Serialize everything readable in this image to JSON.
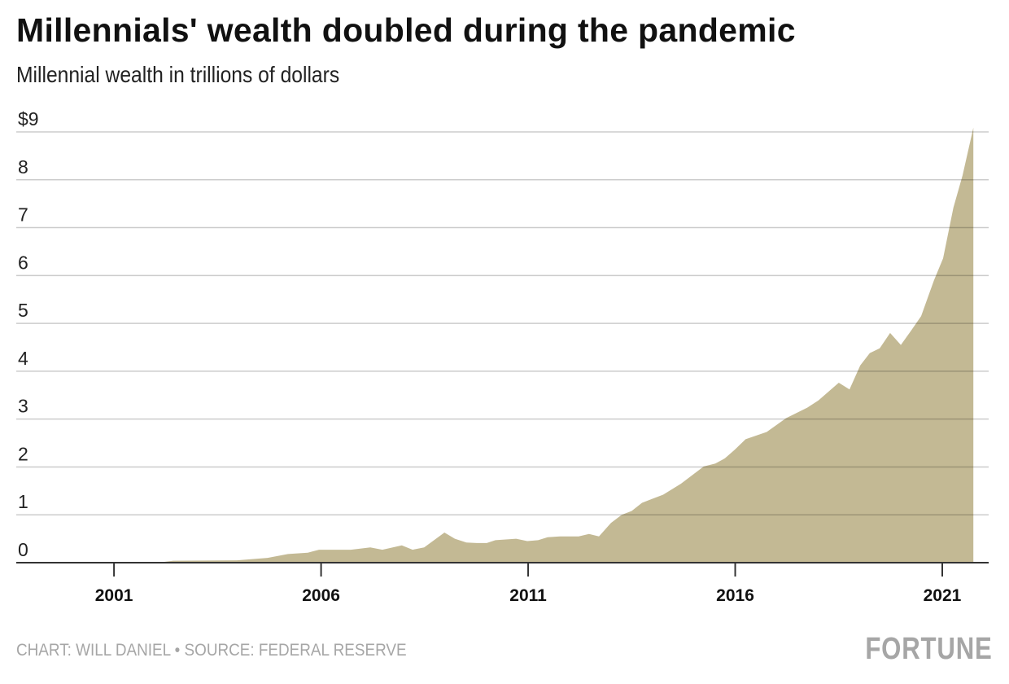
{
  "chart_data": {
    "type": "area",
    "title": "Millennials' wealth doubled during the pandemic",
    "subtitle": "Millennial wealth in trillions of dollars",
    "xlabel": "",
    "ylabel": "Millennial wealth (trillions of dollars)",
    "xlim": [
      1998.64,
      2022.12
    ],
    "ylim": [
      0,
      9
    ],
    "grid": true,
    "legend": "none",
    "fill_color": "#c3b994",
    "x_ticks": [
      2001,
      2006,
      2011,
      2016,
      2021
    ],
    "x_tick_labels": [
      "2001",
      "2006",
      "2011",
      "2016",
      "2021"
    ],
    "y_ticks": [
      0,
      1,
      2,
      3,
      4,
      5,
      6,
      7,
      8,
      9
    ],
    "y_tick_labels": [
      "0",
      "1",
      "2",
      "3",
      "4",
      "5",
      "6",
      "7",
      "8",
      "$9"
    ],
    "points": [
      [
        1998.64,
        0
      ],
      [
        2002.06,
        0
      ],
      [
        2002.43,
        0.04
      ],
      [
        2003.97,
        0.05
      ],
      [
        2004.71,
        0.1
      ],
      [
        2005.2,
        0.18
      ],
      [
        2005.68,
        0.21
      ],
      [
        2005.95,
        0.27
      ],
      [
        2006.72,
        0.27
      ],
      [
        2007.19,
        0.32
      ],
      [
        2007.48,
        0.27
      ],
      [
        2007.95,
        0.36
      ],
      [
        2008.21,
        0.27
      ],
      [
        2008.49,
        0.32
      ],
      [
        2008.98,
        0.63
      ],
      [
        2009.23,
        0.5
      ],
      [
        2009.51,
        0.42
      ],
      [
        2009.76,
        0.41
      ],
      [
        2010.0,
        0.41
      ],
      [
        2010.21,
        0.47
      ],
      [
        2010.71,
        0.5
      ],
      [
        2010.98,
        0.45
      ],
      [
        2011.24,
        0.47
      ],
      [
        2011.47,
        0.53
      ],
      [
        2011.77,
        0.55
      ],
      [
        2012.22,
        0.55
      ],
      [
        2012.47,
        0.6
      ],
      [
        2012.71,
        0.55
      ],
      [
        2013.0,
        0.83
      ],
      [
        2013.26,
        1.0
      ],
      [
        2013.5,
        1.08
      ],
      [
        2013.75,
        1.25
      ],
      [
        2013.99,
        1.33
      ],
      [
        2014.26,
        1.42
      ],
      [
        2014.69,
        1.65
      ],
      [
        2015.24,
        2.01
      ],
      [
        2015.52,
        2.07
      ],
      [
        2015.75,
        2.18
      ],
      [
        2015.99,
        2.36
      ],
      [
        2016.25,
        2.58
      ],
      [
        2016.76,
        2.73
      ],
      [
        2017.23,
        3.02
      ],
      [
        2017.74,
        3.24
      ],
      [
        2018.01,
        3.39
      ],
      [
        2018.5,
        3.76
      ],
      [
        2018.76,
        3.62
      ],
      [
        2019.02,
        4.12
      ],
      [
        2019.25,
        4.38
      ],
      [
        2019.49,
        4.48
      ],
      [
        2019.74,
        4.8
      ],
      [
        2020.0,
        4.55
      ],
      [
        2020.25,
        4.85
      ],
      [
        2020.49,
        5.15
      ],
      [
        2020.8,
        5.9
      ],
      [
        2021.02,
        6.36
      ],
      [
        2021.27,
        7.42
      ],
      [
        2021.49,
        8.09
      ],
      [
        2021.75,
        9.09
      ]
    ]
  },
  "footer": {
    "credit": "CHART: WILL DANIEL • SOURCE: FEDERAL RESERVE",
    "logo": "FORTUNE"
  }
}
